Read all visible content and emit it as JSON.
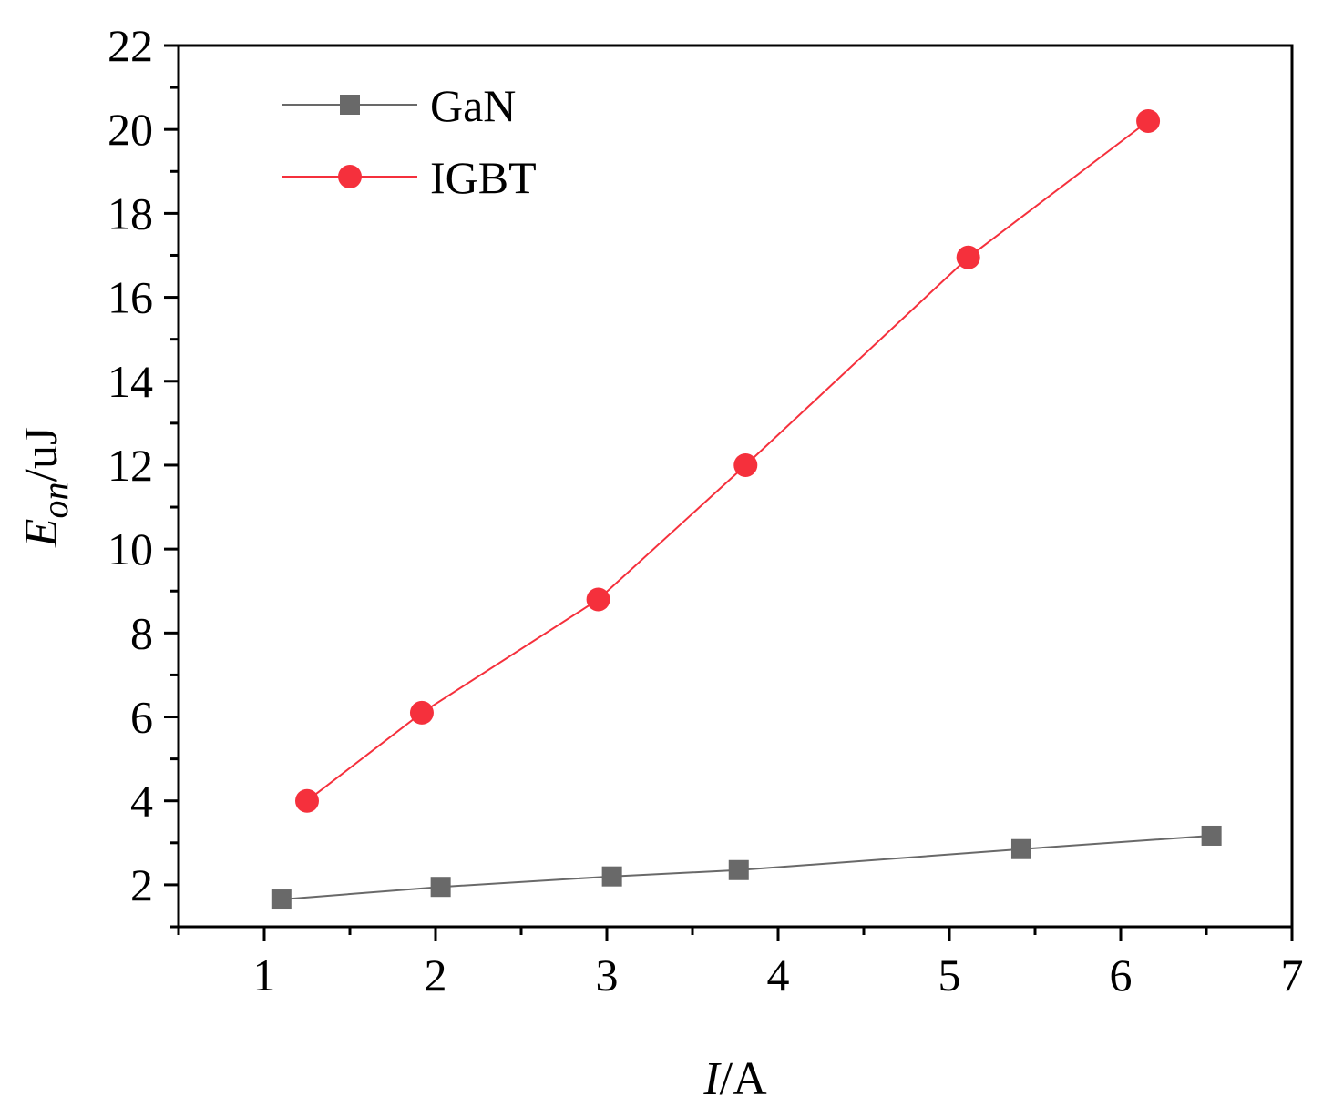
{
  "chart_data": {
    "type": "line",
    "title": "",
    "xlabel_var": "I",
    "xlabel_unit": "/A",
    "ylabel_var": "E",
    "ylabel_sub": "on",
    "ylabel_unit": "/uJ",
    "xlim": [
      0.5,
      7
    ],
    "ylim": [
      1,
      22
    ],
    "xticks": [
      1,
      2,
      3,
      4,
      5,
      6,
      7
    ],
    "yticks": [
      2,
      4,
      6,
      8,
      10,
      12,
      14,
      16,
      18,
      20,
      22
    ],
    "grid": false,
    "legend_position": "top-left",
    "series": [
      {
        "name": "GaN",
        "color": "#696969",
        "marker": "square",
        "x": [
          1.1,
          2.03,
          3.03,
          3.77,
          5.42,
          6.53
        ],
        "y": [
          1.65,
          1.95,
          2.2,
          2.35,
          2.85,
          3.17
        ]
      },
      {
        "name": "IGBT",
        "color": "#f5303c",
        "marker": "circle",
        "x": [
          1.25,
          1.92,
          2.95,
          3.81,
          5.11,
          6.16
        ],
        "y": [
          4.0,
          6.1,
          8.8,
          12.0,
          16.95,
          20.2
        ]
      }
    ]
  }
}
